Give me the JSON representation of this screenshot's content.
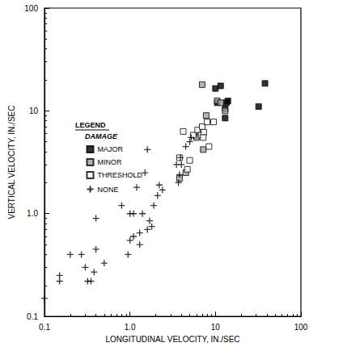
{
  "chart_data": {
    "type": "scatter",
    "x_label": "LONGITUDINAL VELOCITY, IN./SEC",
    "y_label": "VERTICAL VELOCITY, IN./SEC",
    "annotations": [
      {
        "text": "LEGEND"
      },
      {
        "text": "DAMAGE"
      }
    ],
    "log": true,
    "grid": false,
    "legend": "upper left",
    "xlim": [
      0.1,
      100
    ],
    "ylim": [
      0.1,
      100
    ],
    "xticks": [
      0.1,
      {
        "value": 1,
        "label": "1.0"
      },
      10,
      100
    ],
    "yticks": [
      0.1,
      {
        "value": 1,
        "label": "1.0"
      },
      10,
      100
    ],
    "series": [
      {
        "name": "MAJOR",
        "marker": "filled_square",
        "color": "#000000",
        "x": [
          10.0,
          11.5,
          10.5,
          13.0,
          13.5,
          14.0,
          13.0,
          32.0,
          38.0
        ],
        "values": [
          16.5,
          17.5,
          12.0,
          8.5,
          12.0,
          12.5,
          10.5,
          11.0,
          18.5
        ]
      },
      {
        "name": "MINOR",
        "marker": "dotted_square",
        "color": "#000000",
        "x": [
          3.8,
          4.5,
          6.5,
          7.0,
          7.2,
          7.8,
          10.5,
          11.5,
          13.0,
          6.0
        ],
        "values": [
          2.2,
          2.5,
          6.0,
          18.0,
          4.2,
          9.0,
          12.5,
          12.0,
          10.0,
          5.5
        ]
      },
      {
        "name": "THRESHOLD",
        "marker": "open_square",
        "color": "#000000",
        "x": [
          3.8,
          4.2,
          4.7,
          5.5,
          6.2,
          6.8,
          7.0,
          7.3,
          8.0,
          8.4,
          9.5,
          5.0,
          7.2
        ],
        "values": [
          3.5,
          6.3,
          2.7,
          5.8,
          6.5,
          5.8,
          7.0,
          6.2,
          7.8,
          4.5,
          7.8,
          3.3,
          5.5
        ]
      },
      {
        "name": "NONE",
        "marker": "plus",
        "color": "#000000",
        "x": [
          0.1,
          0.15,
          0.15,
          0.2,
          0.27,
          0.3,
          0.32,
          0.35,
          0.38,
          0.4,
          0.4,
          0.5,
          0.8,
          0.95,
          1.0,
          1.0,
          1.1,
          1.1,
          1.2,
          1.3,
          1.3,
          1.4,
          1.5,
          1.6,
          1.6,
          1.7,
          1.9,
          1.8,
          2.1,
          2.2,
          2.4,
          3.5,
          3.7,
          3.9,
          4.0,
          4.5,
          5.0,
          5.2,
          3.8
        ],
        "values": [
          0.15,
          0.22,
          0.25,
          0.4,
          0.4,
          0.3,
          0.22,
          0.22,
          0.27,
          0.45,
          0.9,
          0.33,
          1.2,
          0.4,
          0.55,
          1.0,
          1.0,
          0.6,
          1.8,
          0.65,
          0.5,
          1.0,
          2.5,
          0.7,
          4.2,
          0.85,
          1.2,
          0.75,
          1.5,
          1.9,
          1.7,
          3.0,
          2.0,
          3.5,
          3.0,
          4.5,
          5.0,
          5.5,
          2.4
        ]
      }
    ]
  }
}
